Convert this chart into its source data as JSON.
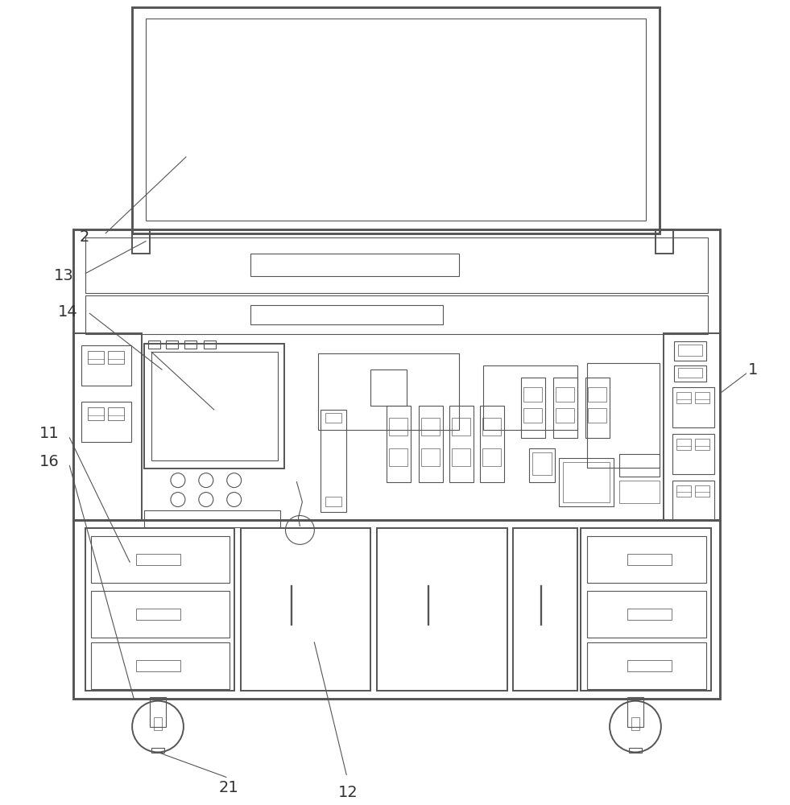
{
  "bg_color": "#ffffff",
  "line_color": "#555555",
  "lw": 1.4,
  "tlw": 0.8,
  "figsize": [
    9.81,
    10.0
  ],
  "dpi": 100
}
